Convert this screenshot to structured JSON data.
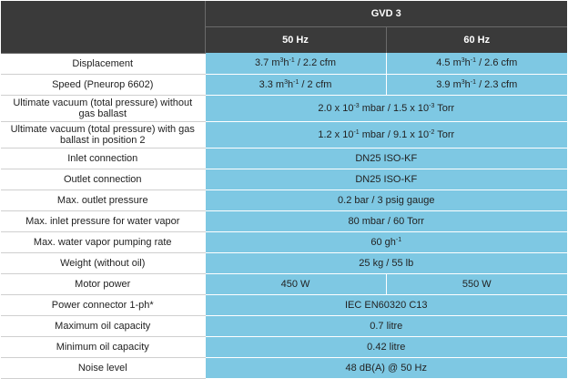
{
  "header": {
    "model": "GVD 3",
    "col_50": "50 Hz",
    "col_60": "60 Hz"
  },
  "rows": [
    {
      "label": "Displacement",
      "v50_main": "3.7 m",
      "v50_sup": "3",
      "v50_mid": "h",
      "v50_sup2": "-1",
      "v50_tail": " / 2.2 cfm",
      "v60_main": "4.5 m",
      "v60_sup": "3",
      "v60_mid": "h",
      "v60_sup2": "-1",
      "v60_tail": " / 2.6 cfm"
    },
    {
      "label": "Speed (Pneurop 6602)",
      "v50_main": "3.3 m",
      "v50_sup": "3",
      "v50_mid": "h",
      "v50_sup2": "-1",
      "v50_tail": " / 2 cfm",
      "v60_main": "3.9 m",
      "v60_sup": "3",
      "v60_mid": "h",
      "v60_sup2": "-1",
      "v60_tail": " / 2.3 cfm"
    },
    {
      "label": "Ultimate vacuum (total pressure) without gas ballast",
      "v_main": "2.0 x 10",
      "v_sup": "-3",
      "v_mid": " mbar / 1.5 x 10",
      "v_sup2": "-3",
      "v_tail": " Torr"
    },
    {
      "label": "Ultimate vacuum (total pressure) with gas ballast in position 2",
      "v_main": "1.2 x 10",
      "v_sup": "-1",
      "v_mid": " mbar / 9.1 x 10",
      "v_sup2": "-2",
      "v_tail": " Torr"
    },
    {
      "label": "Inlet connection",
      "value": "DN25 ISO-KF"
    },
    {
      "label": "Outlet connection",
      "value": "DN25 ISO-KF"
    },
    {
      "label": "Max. outlet pressure",
      "value": "0.2 bar / 3 psig gauge"
    },
    {
      "label": "Max. inlet pressure for water vapor",
      "value": "80 mbar / 60 Torr"
    },
    {
      "label": "Max. water vapor pumping rate",
      "v_main": "60 gh",
      "v_sup": "-1"
    },
    {
      "label": "Weight (without oil)",
      "value": "25 kg / 55 lb"
    },
    {
      "label": "Motor power",
      "v50": "450 W",
      "v60": "550 W"
    },
    {
      "label": "Power connector 1-ph*",
      "value": "IEC EN60320 C13"
    },
    {
      "label": "Maximum oil capacity",
      "value": "0.7 litre"
    },
    {
      "label": "Minimum oil capacity",
      "value": "0.42 litre"
    },
    {
      "label": "Noise level",
      "value": "48 dB(A) @ 50 Hz"
    }
  ]
}
